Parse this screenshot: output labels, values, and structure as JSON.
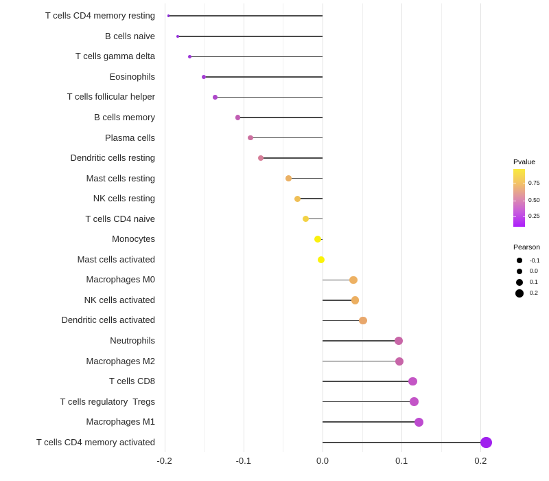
{
  "chart_data": {
    "type": "lollipop",
    "title": "",
    "xlabel": "",
    "ylabel": "",
    "x_tick_labels": [
      "-0.2",
      "-0.1",
      "0.0",
      "0.1",
      "0.2"
    ],
    "x_ticks": [
      -0.2,
      -0.1,
      0.0,
      0.1,
      0.2
    ],
    "x_minor_ticks": [
      -0.15,
      -0.05,
      0.05,
      0.15
    ],
    "xlim": [
      -0.216,
      0.222
    ],
    "grid": "vertical major and minor gridlines only, white background",
    "legend_position": "right",
    "rows": [
      {
        "label": "T cells CD4 memory resting",
        "pearson": -0.195,
        "pvalue_est": 0.04,
        "color": "#8C2BD8",
        "diameter": 3.5
      },
      {
        "label": "B cells naive",
        "pearson": -0.183,
        "pvalue_est": 0.06,
        "color": "#9630DB",
        "diameter": 4.5
      },
      {
        "label": "T cells gamma delta",
        "pearson": -0.168,
        "pvalue_est": 0.08,
        "color": "#9C35D7",
        "diameter": 5.3
      },
      {
        "label": "Eosinophils",
        "pearson": -0.15,
        "pvalue_est": 0.1,
        "color": "#A43ED2",
        "diameter": 6.0
      },
      {
        "label": "T cells follicular helper",
        "pearson": -0.136,
        "pvalue_est": 0.13,
        "color": "#AE48CA",
        "diameter": 6.6
      },
      {
        "label": "B cells memory",
        "pearson": -0.107,
        "pvalue_est": 0.25,
        "color": "#C05DB3",
        "diameter": 7.3
      },
      {
        "label": "Plasma cells",
        "pearson": -0.091,
        "pvalue_est": 0.33,
        "color": "#CC6F9F",
        "diameter": 7.7
      },
      {
        "label": "Dendritic cells resting",
        "pearson": -0.078,
        "pvalue_est": 0.4,
        "color": "#D67E99",
        "diameter": 8.0
      },
      {
        "label": "Mast cells resting",
        "pearson": -0.043,
        "pvalue_est": 0.68,
        "color": "#EBB165",
        "diameter": 8.7
      },
      {
        "label": "NK cells resting",
        "pearson": -0.032,
        "pvalue_est": 0.72,
        "color": "#EFBF56",
        "diameter": 9.0
      },
      {
        "label": "T cells CD4 naive",
        "pearson": -0.021,
        "pvalue_est": 0.79,
        "color": "#F3D244",
        "diameter": 9.3
      },
      {
        "label": "Monocytes",
        "pearson": -0.006,
        "pvalue_est": 0.97,
        "color": "#FAF00E",
        "diameter": 10.0
      },
      {
        "label": "Mast cells activated",
        "pearson": -0.002,
        "pvalue_est": 0.98,
        "color": "#FBF307",
        "diameter": 10.0
      },
      {
        "label": "Macrophages M0",
        "pearson": 0.039,
        "pvalue_est": 0.67,
        "color": "#EDB163",
        "diameter": 11.3
      },
      {
        "label": "NK cells activated",
        "pearson": 0.041,
        "pvalue_est": 0.66,
        "color": "#ECAF61",
        "diameter": 11.3
      },
      {
        "label": "Dendritic cells activated",
        "pearson": 0.051,
        "pvalue_est": 0.62,
        "color": "#E8A76C",
        "diameter": 11.6
      },
      {
        "label": "Neutrophils",
        "pearson": 0.096,
        "pvalue_est": 0.37,
        "color": "#C866A7",
        "diameter": 12.0
      },
      {
        "label": "Macrophages M2",
        "pearson": 0.097,
        "pvalue_est": 0.36,
        "color": "#C765A8",
        "diameter": 12.0
      },
      {
        "label": "T cells CD8",
        "pearson": 0.114,
        "pvalue_est": 0.28,
        "color": "#C456C5",
        "diameter": 12.7
      },
      {
        "label": "T cells regulatory  Tregs",
        "pearson": 0.116,
        "pvalue_est": 0.27,
        "color": "#C354C7",
        "diameter": 12.7
      },
      {
        "label": "Macrophages M1",
        "pearson": 0.122,
        "pvalue_est": 0.22,
        "color": "#BD4BCF",
        "diameter": 13.3
      },
      {
        "label": "T cells CD4 memory activated",
        "pearson": 0.207,
        "pvalue_est": 0.05,
        "color": "#A021EE",
        "diameter": 16.5
      }
    ]
  },
  "legend": {
    "pvalue": {
      "title": "Pvalue",
      "gradient_bottom_to_top": [
        "#AC1EFB",
        "#C75BDE",
        "#DE8FA9",
        "#F3C167",
        "#F9EA3D"
      ],
      "ticks": [
        {
          "label": "0.75",
          "frac_from_top": 0.24
        },
        {
          "label": "0.50",
          "frac_from_top": 0.545
        },
        {
          "label": "0.25",
          "frac_from_top": 0.82
        }
      ]
    },
    "pearson": {
      "title": "Pearson",
      "entries": [
        {
          "label": "-0.1",
          "diameter": 7.3
        },
        {
          "label": "0.0",
          "diameter": 8.7
        },
        {
          "label": "0.1",
          "diameter": 10.0
        },
        {
          "label": "0.2",
          "diameter": 11.7
        }
      ]
    }
  },
  "colors": {
    "background": "#ffffff",
    "stem": "#4a4a4a",
    "grid_major": "#e3e3e3",
    "grid_minor": "#f0f0f0",
    "axis_text": "#262626",
    "legend_dot": "#000000"
  }
}
